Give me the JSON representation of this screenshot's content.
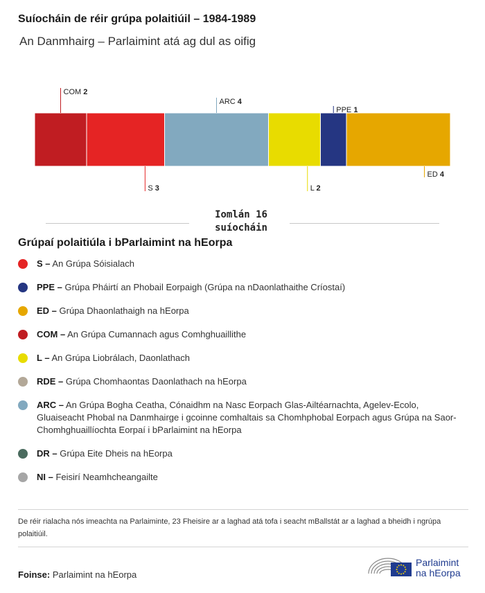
{
  "title": "Suíocháin de réir grúpa polaitiúil – 1984-1989",
  "subtitle": "An Danmhairg – Parlaimint atá ag dul as oifig",
  "chart_data": {
    "type": "bar",
    "orientation": "horizontal-stacked",
    "categories": [
      "COM",
      "S",
      "ARC",
      "L",
      "PPE",
      "ED"
    ],
    "values": [
      2,
      3,
      4,
      2,
      1,
      4
    ],
    "colors": [
      "#c01d22",
      "#e52424",
      "#82a9bf",
      "#e8dc00",
      "#253682",
      "#e6a700"
    ],
    "label_side": [
      "top",
      "bottom",
      "top",
      "bottom",
      "top",
      "bottom"
    ],
    "total": 16
  },
  "total": {
    "line1": "Iomlán 16",
    "line2": "suíocháin"
  },
  "legend_heading": "Grúpaí polaitiúla i bParlaimint na hEorpa",
  "legend": [
    {
      "code": "S –",
      "text": "An Grúpa Sóisialach",
      "color": "#e52424"
    },
    {
      "code": "PPE –",
      "text": "Grúpa Pháirtí an Phobail Eorpaigh (Grúpa na nDaonlathaithe Críostaí)",
      "color": "#253682"
    },
    {
      "code": "ED –",
      "text": "Grúpa Dhaonlathaigh na hEorpa",
      "color": "#e6a700"
    },
    {
      "code": "COM –",
      "text": "An Grúpa Cumannach agus Comhghuaillithe",
      "color": "#c01d22"
    },
    {
      "code": "L –",
      "text": "An Grúpa Liobrálach, Daonlathach",
      "color": "#e8dc00"
    },
    {
      "code": "RDE –",
      "text": "Grúpa Chomhaontas Daonlathach na hEorpa",
      "color": "#b3a898"
    },
    {
      "code": "ARC –",
      "text": "An Grúpa Bogha Ceatha, Cónaidhm na Nasc Eorpach Glas-Ailtéarnachta, Agelev-Ecolo, Gluaiseacht Phobal na Danmhairge i gcoinne comhaltais sa Chomhphobal Eorpach agus Grúpa na Saor-Chomhghuaillíochta Eorpaí i bParlaimint na hEorpa",
      "color": "#82a9bf"
    },
    {
      "code": "DR –",
      "text": "Grúpa Eite Dheis na hEorpa",
      "color": "#4a6b5e"
    },
    {
      "code": "NI –",
      "text": "Feisirí Neamhcheangailte",
      "color": "#a6a6a6"
    }
  ],
  "note": "De réir rialacha nós imeachta na Parlaiminte, 23 Fheisire ar a laghad atá tofa i seacht mBallstát ar a laghad a bheidh i ngrúpa polaitiúil.",
  "source": {
    "label": "Foinse:",
    "text": "Parlaimint na hEorpa"
  },
  "logo": {
    "line1": "Parlaimint",
    "line2": "na hEorpa"
  }
}
